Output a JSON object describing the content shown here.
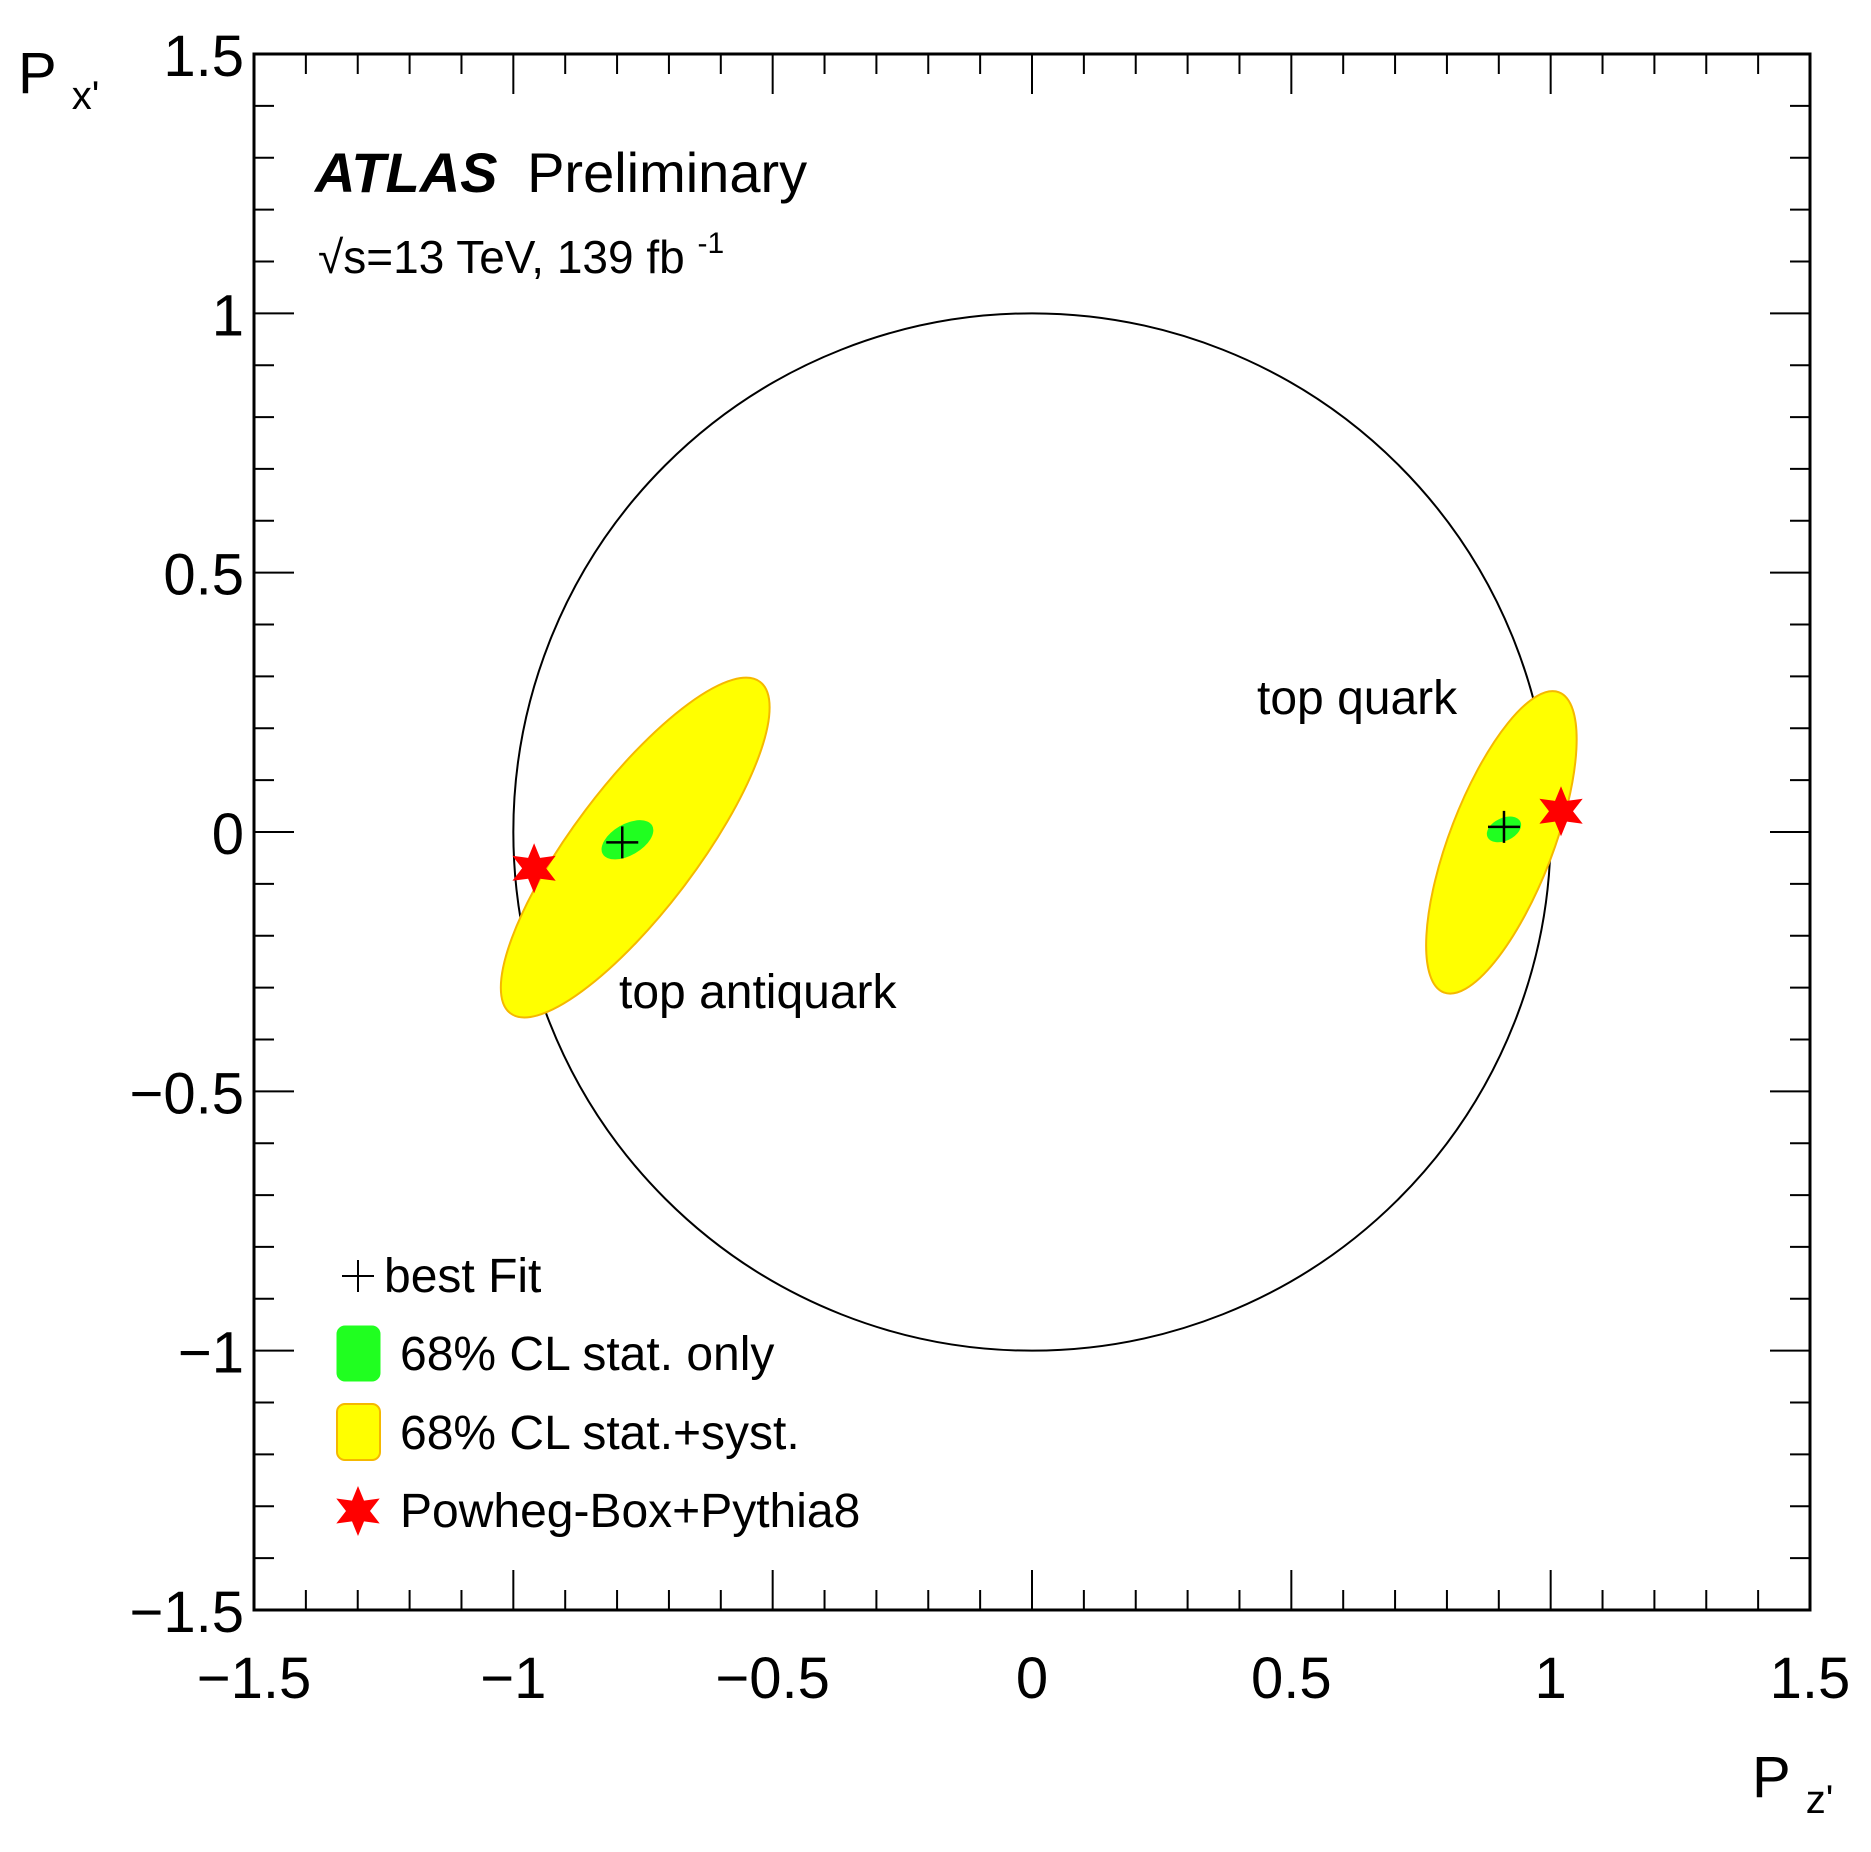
{
  "chart_data": {
    "type": "scatter",
    "experiment": "ATLAS",
    "status": "Preliminary",
    "energy_label": "√s=13 TeV, 139 fb",
    "lumi_superscript": "-1",
    "xlabel": "P",
    "xlabel_sub": "z'",
    "ylabel": "P",
    "ylabel_sub": "x'",
    "xlim": [
      -1.5,
      1.5
    ],
    "ylim": [
      -1.5,
      1.5
    ],
    "x_ticks": [
      "−1.5",
      "−1",
      "−0.5",
      "0",
      "0.5",
      "1",
      "1.5"
    ],
    "y_ticks": [
      "−1.5",
      "−1",
      "−0.5",
      "0",
      "0.5",
      "1",
      "1.5"
    ],
    "tick_values": [
      -1.5,
      -1,
      -0.5,
      0,
      0.5,
      1,
      1.5
    ],
    "unit_circle_radius": 1,
    "regions": [
      {
        "label": "top antiquark",
        "best_fit": {
          "x": -0.79,
          "y": -0.02
        },
        "prediction": {
          "x": -0.96,
          "y": -0.07
        },
        "stat_only_ellipse": {
          "cx": -0.78,
          "cy": -0.015,
          "rx": 0.055,
          "ry": 0.03,
          "angle_deg": 30
        },
        "stat_syst_ellipse": {
          "cx": -0.765,
          "cy": -0.03,
          "rx": 0.4,
          "ry": 0.12,
          "angle_deg": 53
        }
      },
      {
        "label": "top quark",
        "best_fit": {
          "x": 0.91,
          "y": 0.01
        },
        "prediction": {
          "x": 1.02,
          "y": 0.04
        },
        "stat_only_ellipse": {
          "cx": 0.91,
          "cy": 0.005,
          "rx": 0.035,
          "ry": 0.022,
          "angle_deg": 25
        },
        "stat_syst_ellipse": {
          "cx": 0.905,
          "cy": -0.02,
          "rx": 0.31,
          "ry": 0.1,
          "angle_deg": 69
        }
      }
    ],
    "legend": [
      {
        "key": "fit",
        "label": "best Fit"
      },
      {
        "key": "stat",
        "label": "68% CL stat. only",
        "color": "#20ff20"
      },
      {
        "key": "syst",
        "label": "68% CL stat.+syst.",
        "color": "#ffff00"
      },
      {
        "key": "pred",
        "label": "Powheg-Box+Pythia8",
        "color": "#ff0000"
      }
    ],
    "legend_position": "bottom-left",
    "colors": {
      "stat": "#20ff20",
      "syst": "#ffff00",
      "syst_edge": "#f5b800",
      "pred": "#ff0000",
      "circle": "#000000"
    }
  }
}
